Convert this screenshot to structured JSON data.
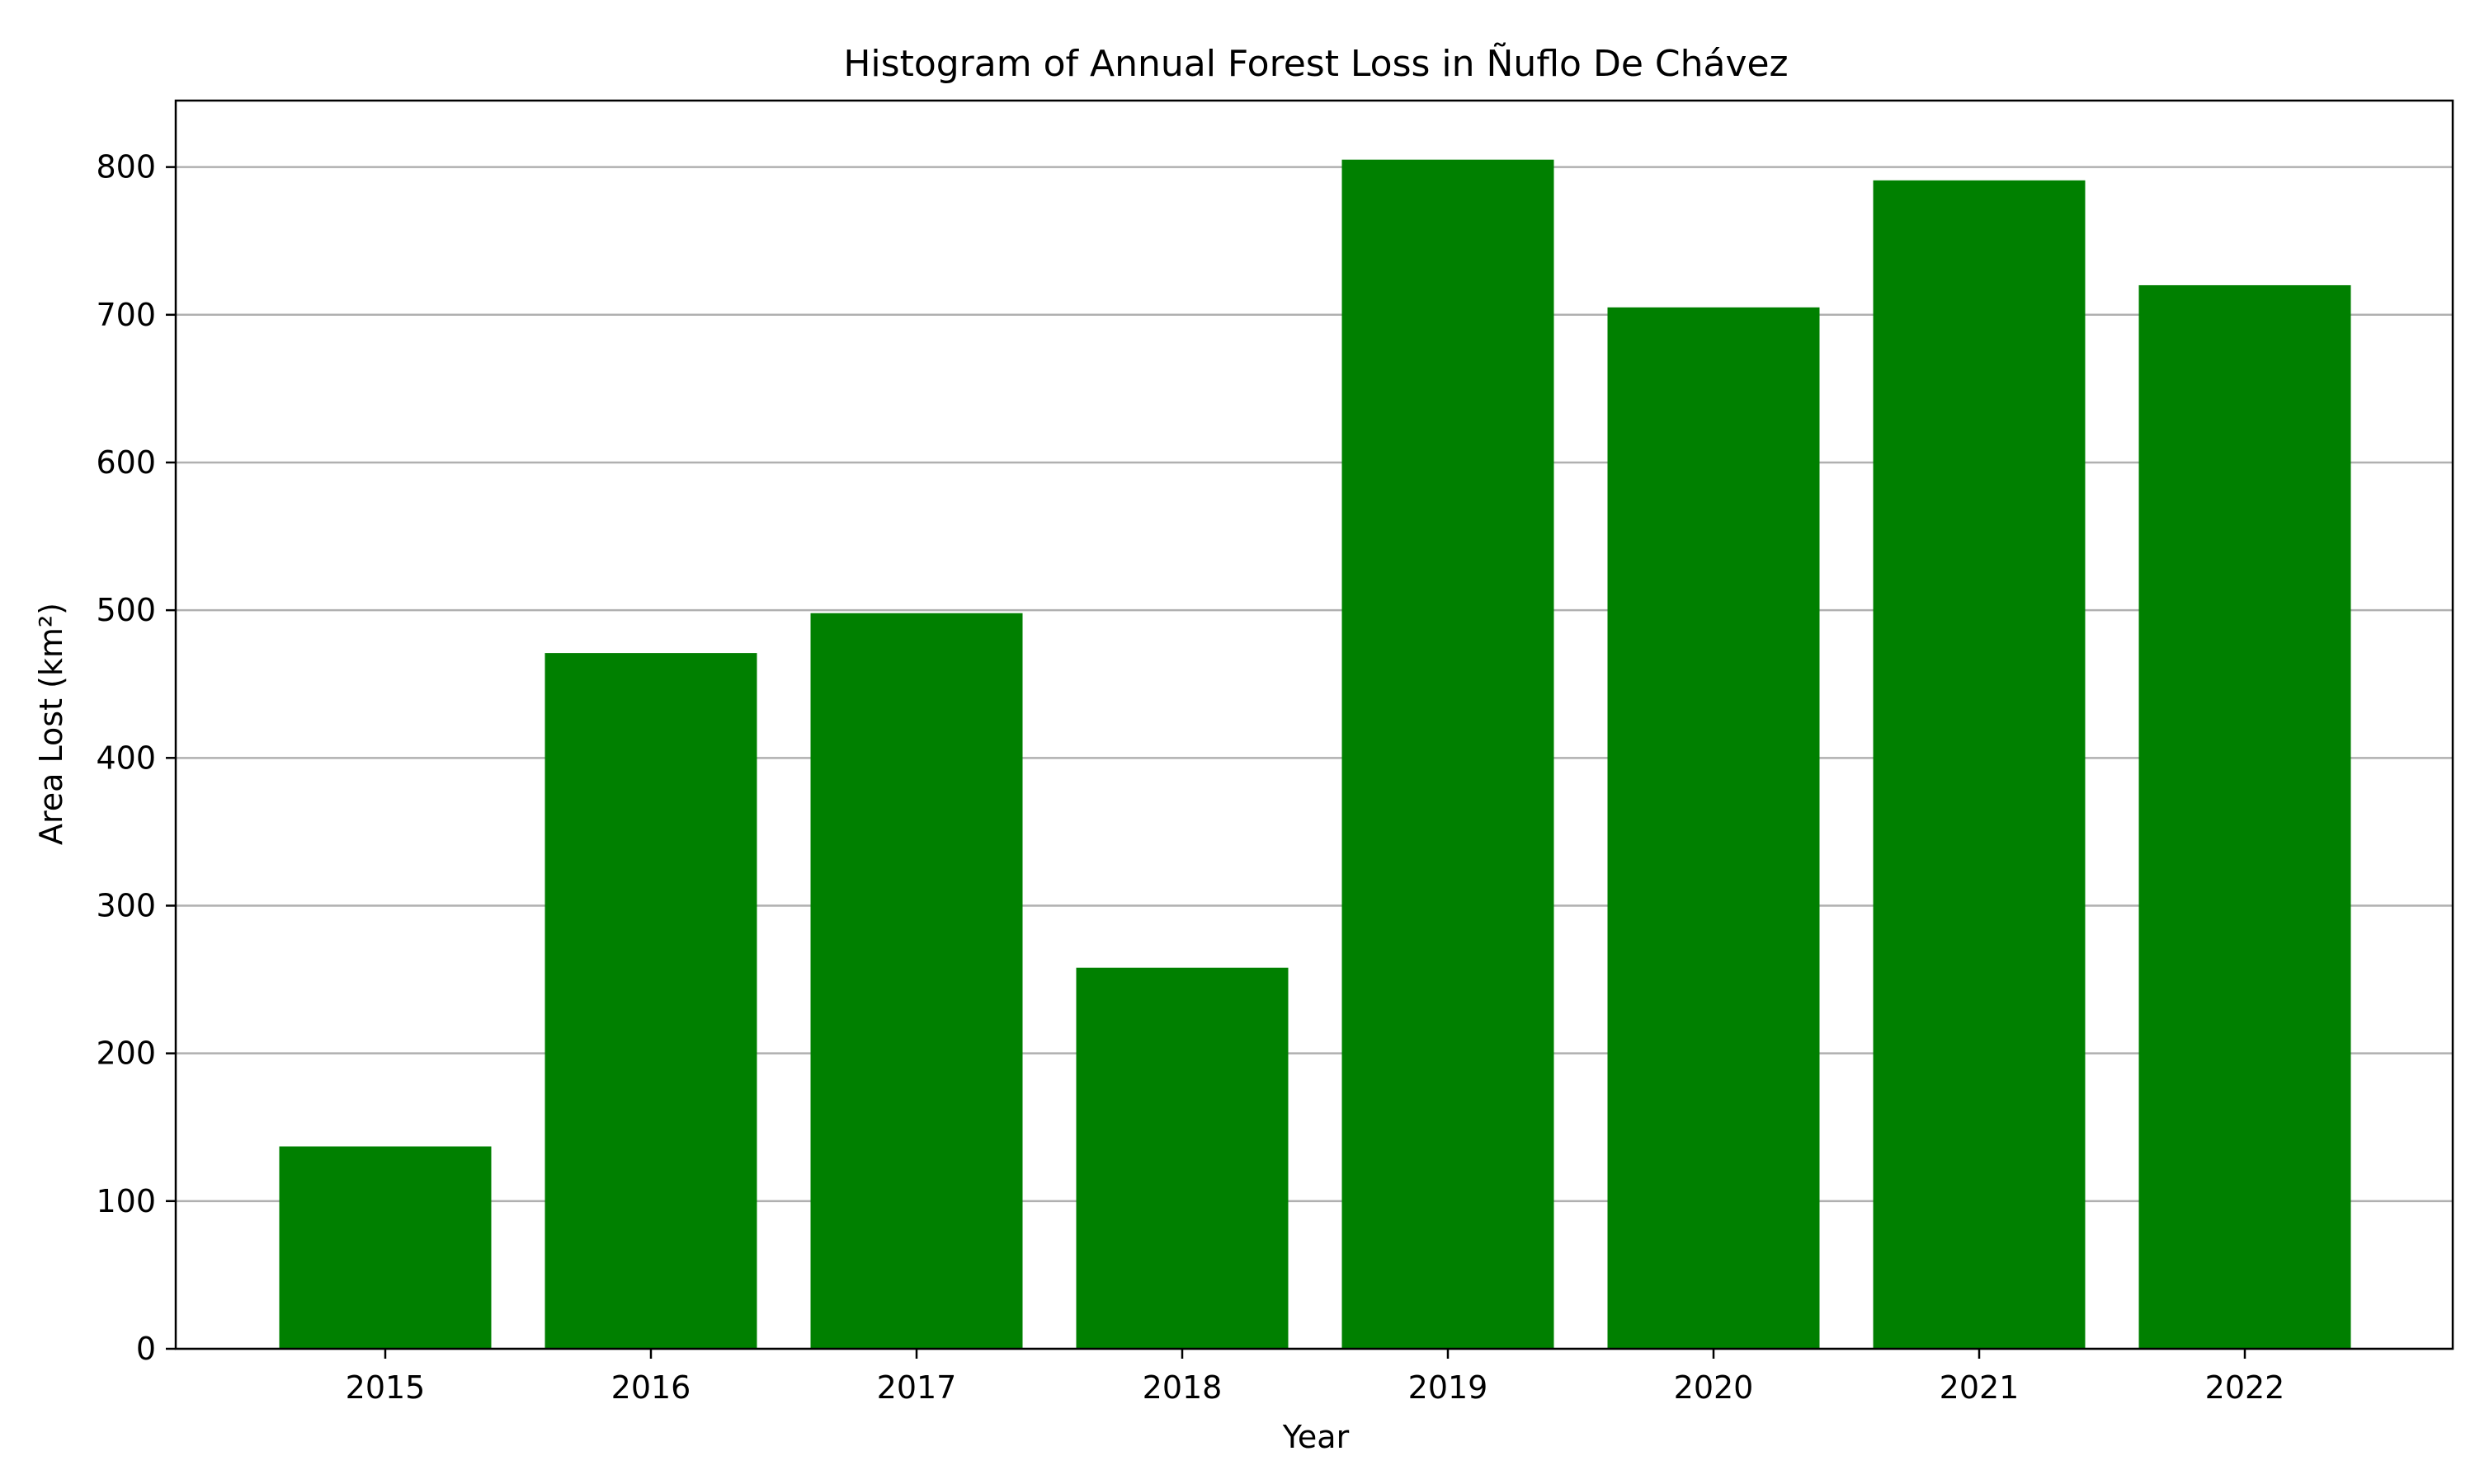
{
  "chart_data": {
    "type": "bar",
    "title": "Histogram of Annual Forest Loss in Ñuflo De Chávez",
    "xlabel": "Year",
    "ylabel": "Area Lost (km²)",
    "categories": [
      "2015",
      "2016",
      "2017",
      "2018",
      "2019",
      "2020",
      "2021",
      "2022"
    ],
    "values": [
      137,
      471,
      498,
      258,
      805,
      705,
      791,
      720
    ],
    "ylim": [
      0,
      845
    ],
    "yticks": [
      0,
      100,
      200,
      300,
      400,
      500,
      600,
      700,
      800
    ],
    "ytick_labels": [
      "0",
      "100",
      "200",
      "300",
      "400",
      "500",
      "600",
      "700",
      "800"
    ],
    "grid": "y-major",
    "bar_color": "#008000",
    "grid_color": "#b0b0b0"
  }
}
